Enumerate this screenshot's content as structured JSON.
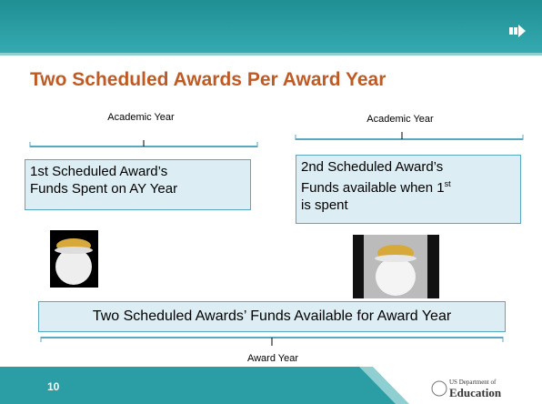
{
  "header": {
    "title": "Two Scheduled Awards Per Award Year"
  },
  "left": {
    "label": "Academic Year",
    "line1": "1st Scheduled Award’s",
    "line2": "Funds Spent on AY Year"
  },
  "right": {
    "label": "Academic Year",
    "line1": "2nd Scheduled Award’s",
    "line2": "Funds available when 1",
    "sup": "st",
    "line3": "is spent"
  },
  "bottom": {
    "box": "Two Scheduled Awards’ Funds Available for Award Year",
    "label": "Award Year"
  },
  "footer": {
    "page": "10",
    "logo_small": "US Department of",
    "logo_big": "Education"
  }
}
